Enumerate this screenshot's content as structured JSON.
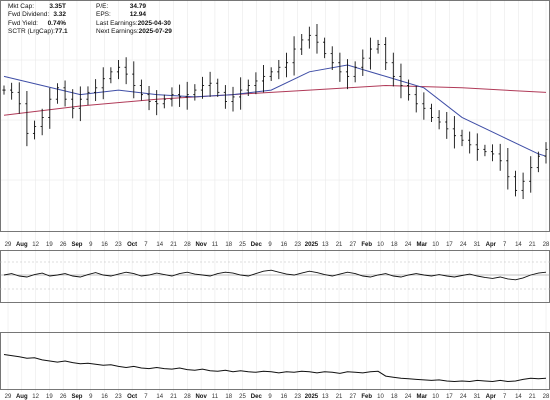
{
  "stats_left": [
    {
      "label": "Mkt Cap:",
      "value": "3.35T"
    },
    {
      "label": "Fwd Dividend:",
      "value": "3.32"
    },
    {
      "label": "Fwd Yield:",
      "value": "0.74%"
    },
    {
      "label": "SCTR (LrgCap):",
      "value": "77.1"
    }
  ],
  "stats_right": [
    {
      "label": "P/E:",
      "value": "34.79"
    },
    {
      "label": "EPS:",
      "value": "12.94"
    },
    {
      "label": "Last Earnings:",
      "value": "2025-04-30"
    },
    {
      "label": "Next Earnings:",
      "value": "2025-07-29"
    }
  ],
  "colors": {
    "price_bars": "#111111",
    "ma_short": "#3f4ea6",
    "ma_long": "#b03a58",
    "grid": "#e6e6e6",
    "pane_border": "#555555",
    "ref_line": "#888888"
  },
  "chart_data": {
    "type": "ohlc",
    "x_tick_labels": [
      "29",
      "Aug",
      "12",
      "19",
      "26",
      "Sep",
      "9",
      "16",
      "23",
      "Oct",
      "7",
      "14",
      "21",
      "28",
      "Nov",
      "11",
      "18",
      "25",
      "Dec",
      "9",
      "16",
      "23",
      "2025",
      "13",
      "21",
      "27",
      "Feb",
      "10",
      "18",
      "24",
      "Mar",
      "10",
      "17",
      "24",
      "31",
      "Apr",
      "7",
      "14",
      "21",
      "28"
    ],
    "month_labels": [
      "Aug",
      "Sep",
      "Oct",
      "Nov",
      "Dec",
      "2025",
      "Feb",
      "Mar",
      "Apr"
    ],
    "price_closes": [
      [
        0,
        0.64
      ],
      [
        1,
        0.63
      ],
      [
        2,
        0.58
      ],
      [
        3,
        0.45
      ],
      [
        4,
        0.48
      ],
      [
        5,
        0.52
      ],
      [
        6,
        0.6
      ],
      [
        7,
        0.65
      ],
      [
        8,
        0.6
      ],
      [
        9,
        0.56
      ],
      [
        10,
        0.6
      ],
      [
        11,
        0.63
      ],
      [
        12,
        0.65
      ],
      [
        13,
        0.69
      ],
      [
        14,
        0.72
      ],
      [
        15,
        0.74
      ],
      [
        16,
        0.71
      ],
      [
        17,
        0.66
      ],
      [
        18,
        0.62
      ],
      [
        19,
        0.59
      ],
      [
        20,
        0.58
      ],
      [
        21,
        0.6
      ],
      [
        22,
        0.62
      ],
      [
        23,
        0.61
      ],
      [
        24,
        0.62
      ],
      [
        25,
        0.64
      ],
      [
        26,
        0.66
      ],
      [
        27,
        0.67
      ],
      [
        28,
        0.63
      ],
      [
        29,
        0.59
      ],
      [
        30,
        0.61
      ],
      [
        31,
        0.64
      ],
      [
        32,
        0.66
      ],
      [
        33,
        0.68
      ],
      [
        34,
        0.7
      ],
      [
        35,
        0.72
      ],
      [
        36,
        0.74
      ],
      [
        37,
        0.76
      ],
      [
        38,
        0.82
      ],
      [
        39,
        0.86
      ],
      [
        40,
        0.88
      ],
      [
        41,
        0.85
      ],
      [
        42,
        0.8
      ],
      [
        43,
        0.76
      ],
      [
        44,
        0.72
      ],
      [
        45,
        0.7
      ],
      [
        46,
        0.74
      ],
      [
        47,
        0.78
      ],
      [
        48,
        0.82
      ],
      [
        49,
        0.84
      ],
      [
        50,
        0.76
      ],
      [
        51,
        0.7
      ],
      [
        52,
        0.66
      ],
      [
        53,
        0.62
      ],
      [
        54,
        0.58
      ],
      [
        55,
        0.56
      ],
      [
        56,
        0.52
      ],
      [
        57,
        0.5
      ],
      [
        58,
        0.47
      ],
      [
        59,
        0.44
      ],
      [
        60,
        0.42
      ],
      [
        61,
        0.4
      ],
      [
        62,
        0.38
      ],
      [
        63,
        0.37
      ],
      [
        64,
        0.36
      ],
      [
        65,
        0.33
      ],
      [
        66,
        0.26
      ],
      [
        67,
        0.2
      ],
      [
        68,
        0.24
      ],
      [
        69,
        0.3
      ],
      [
        70,
        0.35
      ],
      [
        71,
        0.38
      ]
    ],
    "ma_short": [
      [
        0,
        0.7
      ],
      [
        5,
        0.66
      ],
      [
        10,
        0.62
      ],
      [
        15,
        0.64
      ],
      [
        20,
        0.62
      ],
      [
        25,
        0.61
      ],
      [
        30,
        0.62
      ],
      [
        35,
        0.64
      ],
      [
        40,
        0.72
      ],
      [
        45,
        0.75
      ],
      [
        50,
        0.7
      ],
      [
        55,
        0.65
      ],
      [
        60,
        0.52
      ],
      [
        65,
        0.44
      ],
      [
        70,
        0.36
      ],
      [
        71,
        0.35
      ]
    ],
    "ma_long": [
      [
        0,
        0.53
      ],
      [
        10,
        0.57
      ],
      [
        20,
        0.6
      ],
      [
        30,
        0.62
      ],
      [
        40,
        0.64
      ],
      [
        50,
        0.66
      ],
      [
        60,
        0.65
      ],
      [
        71,
        0.63
      ]
    ],
    "indicator_1": [
      0.52,
      0.55,
      0.5,
      0.48,
      0.53,
      0.56,
      0.5,
      0.52,
      0.55,
      0.5,
      0.48,
      0.53,
      0.57,
      0.52,
      0.5,
      0.54,
      0.58,
      0.55,
      0.5,
      0.52,
      0.56,
      0.53,
      0.5,
      0.55,
      0.58,
      0.54,
      0.52,
      0.5,
      0.55,
      0.58,
      0.56,
      0.52,
      0.5,
      0.55,
      0.6,
      0.62,
      0.58,
      0.54,
      0.52,
      0.56,
      0.6,
      0.57,
      0.53,
      0.5,
      0.54,
      0.58,
      0.55,
      0.5,
      0.48,
      0.52,
      0.55,
      0.5,
      0.48,
      0.52,
      0.55,
      0.52,
      0.5,
      0.53,
      0.5,
      0.48,
      0.51,
      0.54,
      0.5,
      0.47,
      0.45,
      0.48,
      0.44,
      0.42,
      0.46,
      0.52,
      0.56,
      0.58
    ],
    "indicator_2": [
      0.62,
      0.6,
      0.58,
      0.55,
      0.56,
      0.52,
      0.5,
      0.48,
      0.5,
      0.47,
      0.45,
      0.46,
      0.44,
      0.42,
      0.43,
      0.4,
      0.38,
      0.4,
      0.37,
      0.36,
      0.38,
      0.36,
      0.35,
      0.37,
      0.34,
      0.33,
      0.35,
      0.32,
      0.31,
      0.33,
      0.3,
      0.32,
      0.3,
      0.29,
      0.31,
      0.3,
      0.28,
      0.3,
      0.29,
      0.31,
      0.3,
      0.28,
      0.3,
      0.29,
      0.27,
      0.3,
      0.29,
      0.28,
      0.3,
      0.31,
      0.22,
      0.2,
      0.18,
      0.17,
      0.16,
      0.15,
      0.14,
      0.15,
      0.13,
      0.12,
      0.13,
      0.12,
      0.14,
      0.13,
      0.12,
      0.14,
      0.12,
      0.13,
      0.16,
      0.18,
      0.17,
      0.18
    ]
  }
}
